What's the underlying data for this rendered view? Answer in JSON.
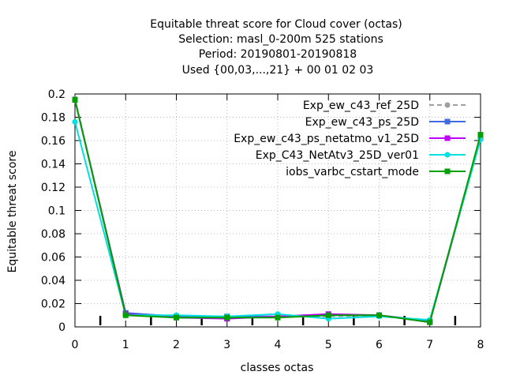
{
  "chart_data": {
    "type": "line",
    "title_lines": [
      "Equitable threat score  for Cloud cover (octas)",
      "Selection: masl_0-200m    525 stations",
      "Period: 20190801-20190818",
      "Used {00,03,...,21} + 00 01 02 03"
    ],
    "xlabel": "classes octas",
    "ylabel": "Equitable threat score",
    "xlim": [
      0,
      8
    ],
    "ylim": [
      0,
      0.2
    ],
    "x_ticks": [
      "0",
      "1",
      "2",
      "3",
      "4",
      "5",
      "6",
      "7",
      "8"
    ],
    "y_ticks": [
      "0",
      "0.02",
      "0.04",
      "0.06",
      "0.08",
      "0.1",
      "0.12",
      "0.14",
      "0.16",
      "0.18",
      "0.2"
    ],
    "x": [
      0,
      1,
      2,
      3,
      4,
      5,
      6,
      7,
      8
    ],
    "legend_position": "top-right",
    "grid": "dotted",
    "series": [
      {
        "name": "Exp_ew_c43_ref_25D",
        "color": "#a0a0a0",
        "marker": "circle",
        "dash": "6,4",
        "values": [
          0.196,
          0.011,
          0.009,
          0.008,
          0.009,
          0.009,
          0.01,
          0.005,
          0.163
        ]
      },
      {
        "name": "Exp_ew_c43_ps_25D",
        "color": "#4169e1",
        "marker": "square",
        "dash": "",
        "values": [
          0.195,
          0.012,
          0.009,
          0.009,
          0.009,
          0.01,
          0.01,
          0.005,
          0.162
        ]
      },
      {
        "name": "Exp_ew_c43_ps_netatmo_v1_25D",
        "color": "#c000ff",
        "marker": "square",
        "dash": "",
        "values": [
          0.195,
          0.011,
          0.008,
          0.007,
          0.009,
          0.011,
          0.01,
          0.004,
          0.162
        ]
      },
      {
        "name": "Exp_C43_NetAtv3_25D_ver01",
        "color": "#00e0e0",
        "marker": "circle",
        "dash": "",
        "values": [
          0.176,
          0.01,
          0.01,
          0.009,
          0.011,
          0.007,
          0.009,
          0.006,
          0.161
        ]
      },
      {
        "name": "iobs_varbc_cstart_mode",
        "color": "#00a000",
        "marker": "square",
        "dash": "",
        "values": [
          0.195,
          0.01,
          0.008,
          0.008,
          0.008,
          0.01,
          0.01,
          0.004,
          0.165
        ]
      }
    ]
  }
}
